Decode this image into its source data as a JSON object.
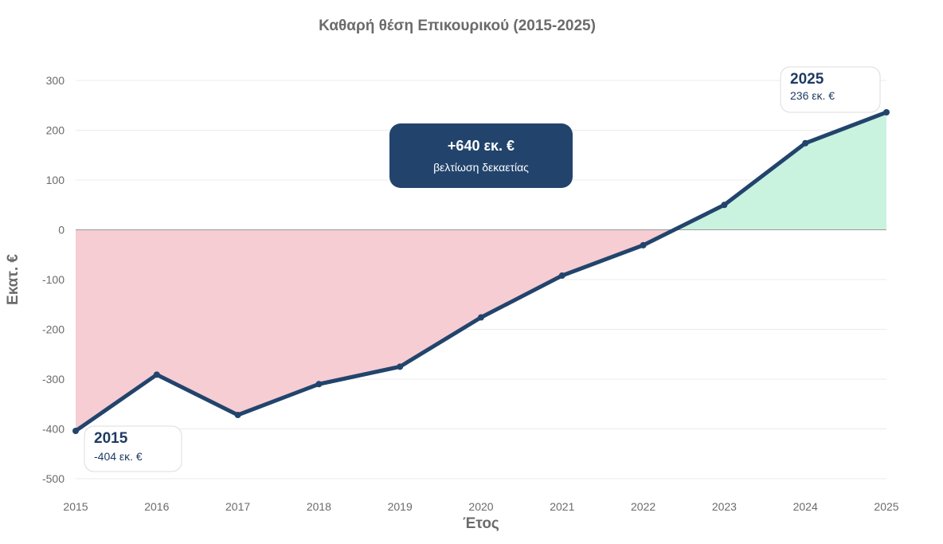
{
  "chart_data": {
    "type": "line",
    "title": "Καθαρή θέση Επικουρικού (2015-2025)",
    "xlabel": "Έτος",
    "ylabel": "Εκατ. €",
    "ylim": [
      -500,
      300
    ],
    "yticks": [
      300,
      200,
      100,
      0,
      -100,
      -200,
      -300,
      -400,
      -500
    ],
    "x": [
      2015,
      2016,
      2017,
      2018,
      2019,
      2020,
      2021,
      2022,
      2023,
      2024,
      2025
    ],
    "series": [
      {
        "values": [
          -404,
          -291,
          -372,
          -310,
          -275,
          -176,
          -92,
          -31,
          50,
          174,
          236
        ]
      }
    ],
    "fill_colors": {
      "negative": "#f5cdd3",
      "positive": "#c9f2df"
    },
    "line_color": "#22446c",
    "grid": true,
    "annotations": {
      "start": {
        "year": "2015",
        "value": "-404 εκ. €"
      },
      "end": {
        "year": "2025",
        "value": "236 εκ. €"
      },
      "summary": {
        "headline": "+640 εκ. €",
        "subtitle": "βελτίωση δεκαετίας"
      }
    }
  }
}
